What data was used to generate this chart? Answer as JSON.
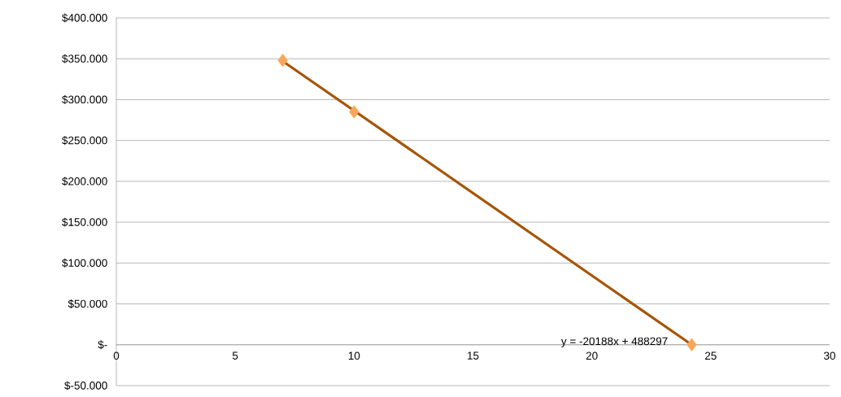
{
  "chart_data": {
    "type": "scatter",
    "xlim": [
      0,
      30
    ],
    "xticks": [
      0,
      5,
      10,
      15,
      20,
      25,
      30
    ],
    "ylim": [
      -50000,
      400000
    ],
    "yticks": [
      {
        "value": -50000,
        "label": "$-50.000"
      },
      {
        "value": 0,
        "label": "$-"
      },
      {
        "value": 50000,
        "label": "$50.000"
      },
      {
        "value": 100000,
        "label": "$100.000"
      },
      {
        "value": 150000,
        "label": "$150.000"
      },
      {
        "value": 200000,
        "label": "$200.000"
      },
      {
        "value": 250000,
        "label": "$250.000"
      },
      {
        "value": 300000,
        "label": "$300.000"
      },
      {
        "value": 350000,
        "label": "$350.000"
      },
      {
        "value": 400000,
        "label": "$400.000"
      }
    ],
    "grid": "y",
    "series": [
      {
        "color": "#f9a65a",
        "marker": "diamond",
        "x": [
          7,
          10,
          24.2
        ],
        "values": [
          348000,
          285000,
          0
        ]
      },
      {
        "type": "line",
        "color": "#a65508",
        "x": [
          7,
          24.2
        ],
        "values": [
          347000,
          0
        ]
      }
    ],
    "annotations": [
      "y = -20188x + 488297"
    ]
  }
}
